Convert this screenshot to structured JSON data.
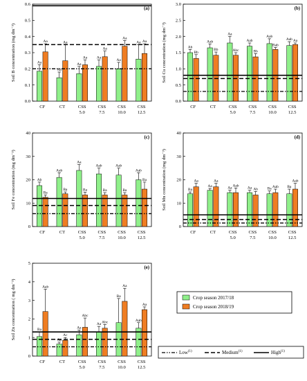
{
  "colors": {
    "s1": "#8ff08a",
    "s2": "#ef7d22"
  },
  "chart_data": [
    {
      "type": "bar",
      "panel": "(a)",
      "ylabel": "Soil B concentration (mg dm⁻³)",
      "ylim": [
        0,
        0.6
      ],
      "yticks": [
        0.0,
        0.1,
        0.2,
        0.3,
        0.4,
        0.5,
        0.6
      ],
      "ytick_labels": [
        "0.0",
        "0.1",
        "0.2",
        "0.3",
        "0.4",
        "0.5",
        "0.6"
      ],
      "categories": [
        [
          "CF"
        ],
        [
          "CT"
        ],
        [
          "CSS",
          "5.0"
        ],
        [
          "CSS",
          "7.5"
        ],
        [
          "CSS",
          "10.0"
        ],
        [
          "CSS",
          "12.5"
        ]
      ],
      "series": [
        {
          "name": "Crop season 2017/18",
          "values": [
            0.185,
            0.145,
            0.17,
            0.215,
            0.2,
            0.26
          ],
          "errors": [
            0.04,
            0.035,
            0.045,
            0.04,
            0.04,
            0.09
          ],
          "labels": [
            "Aa",
            "Aa",
            "Aa",
            "Aa",
            "Aa",
            "Aa"
          ]
        },
        {
          "name": "Crop season 2018/19",
          "values": [
            0.305,
            0.25,
            0.225,
            0.275,
            0.34,
            0.295
          ],
          "errors": [
            0.05,
            0.1,
            0.03,
            0.035,
            0.035,
            0.06
          ],
          "labels": [
            "Aa",
            "Aa",
            "Aa",
            "Aa",
            "Aa",
            "Aa"
          ]
        }
      ],
      "ref_lines": {
        "low": 0.2,
        "medium": 0.35,
        "high": 0.59
      }
    },
    {
      "type": "bar",
      "panel": "(b)",
      "ylabel": "Soil Cu concentration (mg dm⁻³)",
      "ylim": [
        0,
        3.0
      ],
      "yticks": [
        0.0,
        0.5,
        1.0,
        1.5,
        2.0,
        2.5,
        3.0
      ],
      "ytick_labels": [
        "0.0",
        "0.5",
        "1.0",
        "1.5",
        "2.0",
        "2.5",
        "3.0"
      ],
      "categories": [
        [
          "CF"
        ],
        [
          "CT"
        ],
        [
          "CSS",
          "5.0"
        ],
        [
          "CSS",
          "7.5"
        ],
        [
          "CSS",
          "10.0"
        ],
        [
          "CSS",
          "12.5"
        ]
      ],
      "series": [
        {
          "name": "Crop season 2017/18",
          "values": [
            1.5,
            1.65,
            1.8,
            1.7,
            1.78,
            1.72
          ],
          "errors": [
            0.1,
            0.12,
            0.2,
            0.1,
            0.15,
            0.12
          ],
          "labels": [
            "Ab",
            "Aab",
            "Aa",
            "Aab",
            "Aab",
            "Aab"
          ]
        },
        {
          "name": "Crop season 2018/19",
          "values": [
            1.32,
            1.42,
            1.42,
            1.37,
            1.6,
            1.75
          ],
          "errors": [
            0.12,
            0.1,
            0.08,
            0.1,
            0.06,
            0.05
          ],
          "labels": [
            "Bb",
            "Bb",
            "Abc",
            "Bb",
            "Bab",
            "Aa"
          ]
        }
      ],
      "ref_lines": {
        "low": 0.3,
        "medium": 0.7,
        "high": 0.8
      }
    },
    {
      "type": "bar",
      "panel": "(c)",
      "ylabel": "Soil Fe concentration (mg dm⁻³)",
      "ylim": [
        0,
        40
      ],
      "yticks": [
        0,
        10,
        20,
        30,
        40
      ],
      "ytick_labels": [
        "0",
        "10",
        "20",
        "30",
        "40"
      ],
      "categories": [
        [
          "CF"
        ],
        [
          "CT"
        ],
        [
          "CSS",
          "5.0"
        ],
        [
          "CSS",
          "7.5"
        ],
        [
          "CSS",
          "10.0"
        ],
        [
          "CSS",
          "12.5"
        ]
      ],
      "series": [
        {
          "name": "Crop season 2017/18",
          "values": [
            17.5,
            21,
            24,
            22.5,
            22,
            20
          ],
          "errors": [
            1.5,
            2,
            2.5,
            2.5,
            3,
            3
          ],
          "labels": [
            "Ab",
            "Aab",
            "Aa",
            "Aab",
            "Aab",
            "Aab"
          ]
        },
        {
          "name": "Crop season 2018/19",
          "values": [
            12.5,
            14,
            13.5,
            13.5,
            13.5,
            16
          ],
          "errors": [
            1,
            0.8,
            1.2,
            1,
            1,
            3
          ],
          "labels": [
            "Ba",
            "Ba",
            "Ba",
            "Ba",
            "Ba",
            "Ba"
          ]
        }
      ],
      "ref_lines": {
        "low": 5.5,
        "medium": 9,
        "high": 12
      }
    },
    {
      "type": "bar",
      "panel": "(d)",
      "ylabel": "Soil Mn concentration (mg dm⁻³)",
      "ylim": [
        0,
        40
      ],
      "yticks": [
        0,
        10,
        20,
        30,
        40
      ],
      "ytick_labels": [
        "0",
        "10",
        "20",
        "30",
        "40"
      ],
      "categories": [
        [
          "CF"
        ],
        [
          "CT"
        ],
        [
          "CSS",
          "5.0"
        ],
        [
          "CSS",
          "7.5"
        ],
        [
          "CSS",
          "10.0"
        ],
        [
          "CSS",
          "12.5"
        ]
      ],
      "series": [
        {
          "name": "Crop season 2017/18",
          "values": [
            14,
            15.5,
            14.5,
            14.5,
            14,
            14
          ],
          "errors": [
            0.8,
            0.8,
            1,
            1,
            1.2,
            2
          ],
          "labels": [
            "Ba",
            "Aa",
            "Aa",
            "Aa",
            "Ba",
            "Ba"
          ]
        },
        {
          "name": "Crop season 2018/19",
          "values": [
            17,
            17,
            14.5,
            13.5,
            14.5,
            16
          ],
          "errors": [
            1.5,
            1.5,
            2,
            1.5,
            1.5,
            2.5
          ],
          "labels": [
            "Aa",
            "Aa",
            "Aab",
            "Ab",
            "Aab",
            "Aab"
          ]
        }
      ],
      "ref_lines": {
        "low": 1.5,
        "medium": 3,
        "high": 5
      }
    },
    {
      "type": "bar",
      "panel": "(e)",
      "ylabel": "Soil Zn concentration ( mg dm⁻³)",
      "ylim": [
        0,
        5
      ],
      "yticks": [
        0,
        1,
        2,
        3,
        4,
        5
      ],
      "ytick_labels": [
        "0",
        "1",
        "2",
        "3",
        "4",
        "5"
      ],
      "categories": [
        [
          "CF"
        ],
        [
          "CT"
        ],
        [
          "CSS",
          "5.0"
        ],
        [
          "CSS",
          "7.5"
        ],
        [
          "CSS",
          "10.0"
        ],
        [
          "CSS",
          "12.5"
        ]
      ],
      "series": [
        {
          "name": "Crop season 2017/18",
          "values": [
            1.05,
            0.65,
            1.15,
            1.3,
            1.8,
            1.5
          ],
          "errors": [
            0.25,
            0.1,
            0.25,
            0.3,
            1.3,
            0.3
          ],
          "labels": [
            "Ba",
            "Aa",
            "Aa",
            "Aa",
            "Ba",
            "Aab"
          ]
        },
        {
          "name": "Crop season 2018/19",
          "values": [
            2.4,
            0.85,
            1.55,
            1.5,
            2.95,
            2.5
          ],
          "errors": [
            1.2,
            0.15,
            0.5,
            0.2,
            0.7,
            0.15
          ],
          "labels": [
            "Aab",
            "Ac",
            "Abc",
            "Abc",
            "Aa",
            "Aa"
          ]
        }
      ],
      "ref_lines": {
        "low": 0.5,
        "medium": 0.9,
        "high": 1.3
      }
    }
  ],
  "legend": {
    "series": [
      {
        "label": "Crop season 2017/18"
      },
      {
        "label": "Crop season 2018/19"
      }
    ],
    "lines": [
      {
        "label": "Low",
        "sup": "(1)"
      },
      {
        "label": "Medium",
        "sup": "(1)"
      },
      {
        "label": "High",
        "sup": "(1)"
      }
    ]
  }
}
